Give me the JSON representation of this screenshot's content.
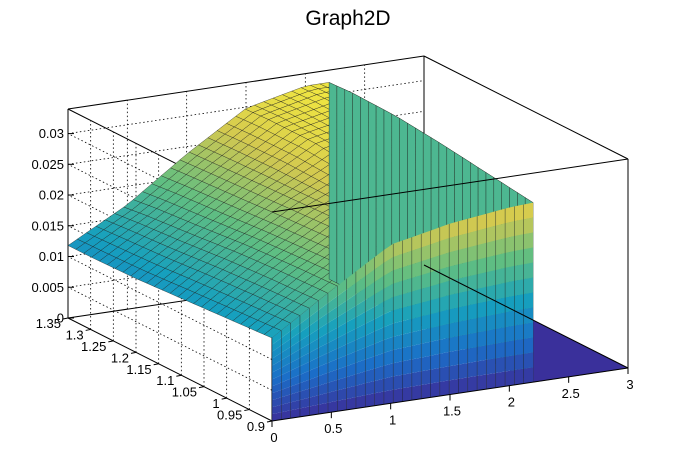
{
  "chart_data": {
    "type": "surface",
    "title": "Graph2D",
    "xlabel": "",
    "ylabel": "",
    "zlabel": "",
    "x_range": [
      0,
      3
    ],
    "y_range": [
      0.9,
      1.35
    ],
    "z_range": [
      0,
      0.034
    ],
    "x_ticks": [
      0,
      0.5,
      1,
      1.5,
      2,
      2.5,
      3
    ],
    "x_tick_labels": [
      "0",
      "0.5",
      "1",
      "1.5",
      "2",
      "2.5",
      "3"
    ],
    "y_ticks": [
      0.9,
      0.95,
      1,
      1.05,
      1.1,
      1.15,
      1.2,
      1.25,
      1.3,
      1.35
    ],
    "y_tick_labels": [
      "0.9",
      "0.95",
      "1",
      "1.05",
      "1.1",
      "1.15",
      "1.2",
      "1.25",
      "1.3",
      "1.35"
    ],
    "z_ticks": [
      0,
      0.005,
      0.01,
      0.015,
      0.02,
      0.025,
      0.03
    ],
    "z_tick_labels": [
      "0",
      "0.005",
      "0.01",
      "0.015",
      "0.02",
      "0.025",
      "0.03"
    ],
    "grid": true,
    "colormap": "viridis-like (blue to yellow)",
    "surface_x_extent": [
      0,
      2.2
    ],
    "surface_z_samples": {
      "x": [
        0,
        0.5,
        1,
        1.5,
        2,
        2.2
      ],
      "y": [
        0.9,
        1.0,
        1.1,
        1.2,
        1.3,
        1.35
      ],
      "z": [
        [
          0.0135,
          0.0198,
          0.0258,
          0.0278,
          0.029,
          0.0292
        ],
        [
          0.013,
          0.0195,
          0.0252,
          0.0285,
          0.03,
          0.0302
        ],
        [
          0.0125,
          0.019,
          0.0248,
          0.0292,
          0.031,
          0.0312
        ],
        [
          0.012,
          0.0182,
          0.0244,
          0.03,
          0.0318,
          0.032
        ],
        [
          0.0118,
          0.0175,
          0.024,
          0.03,
          0.0322,
          0.0322
        ],
        [
          0.0118,
          0.017,
          0.0238,
          0.0298,
          0.032,
          0.032
        ]
      ]
    },
    "colors": {
      "box": "#000000",
      "mesh": "#1a1a1a"
    }
  }
}
